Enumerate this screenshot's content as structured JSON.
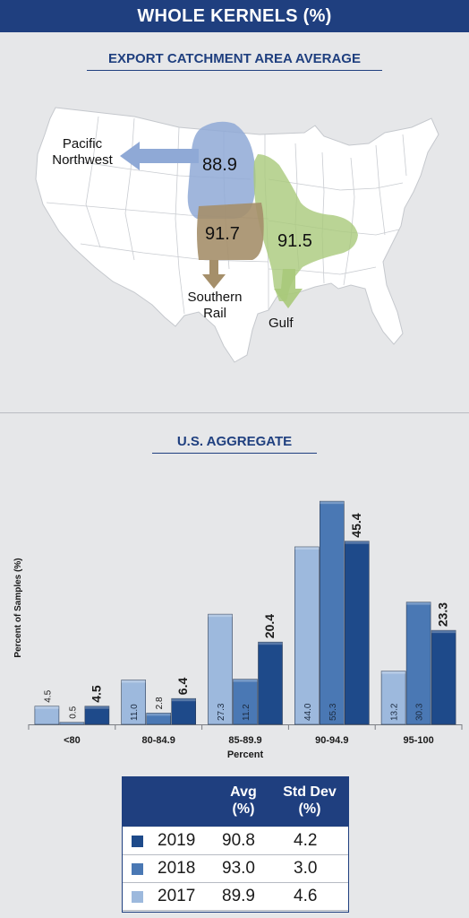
{
  "header": {
    "title": "WHOLE KERNELS (%)"
  },
  "map": {
    "title": "EXPORT CATCHMENT AREA AVERAGE",
    "regions": [
      {
        "name": "Pacific Northwest",
        "name_lines": [
          "Pacific",
          "Northwest"
        ],
        "value": "88.9",
        "color": "#8fa9d6"
      },
      {
        "name": "Southern Rail",
        "name_lines": [
          "Southern",
          "Rail"
        ],
        "value": "91.7",
        "color": "#a58f6a"
      },
      {
        "name": "Gulf",
        "name_lines": [
          "Gulf"
        ],
        "value": "91.5",
        "color": "#a9c97a"
      }
    ]
  },
  "chart_data": {
    "type": "bar",
    "title": "U.S. AGGREGATE",
    "xlabel": "Percent",
    "ylabel": "Percent of Samples (%)",
    "ylim": [
      0,
      60
    ],
    "categories": [
      "<80",
      "80-84.9",
      "85-89.9",
      "90-94.9",
      "95-100"
    ],
    "series": [
      {
        "name": "2017",
        "values": [
          4.5,
          11.0,
          27.3,
          44.0,
          13.2
        ],
        "color": "#9db9dd"
      },
      {
        "name": "2018",
        "values": [
          0.5,
          2.8,
          11.2,
          55.3,
          30.3
        ],
        "color": "#4a78b4"
      },
      {
        "name": "2019",
        "values": [
          4.5,
          6.4,
          20.4,
          45.4,
          23.3
        ],
        "color": "#1e4a8a"
      }
    ],
    "labels": [
      [
        "4.5",
        "0.5",
        "4.5"
      ],
      [
        "11.0",
        "2.8",
        "6.4"
      ],
      [
        "27.3",
        "11.2",
        "20.4"
      ],
      [
        "44.0",
        "55.3",
        "45.4"
      ],
      [
        "13.2",
        "30.3",
        "23.3"
      ]
    ]
  },
  "stats_table": {
    "headers": {
      "avg_line1": "Avg",
      "avg_line2": "(%)",
      "std_line1": "Std Dev",
      "std_line2": "(%)"
    },
    "rows": [
      {
        "year": "2019",
        "avg": "90.8",
        "std": "4.2",
        "color": "#1e4a8a"
      },
      {
        "year": "2018",
        "avg": "93.0",
        "std": "3.0",
        "color": "#4a78b4"
      },
      {
        "year": "2017",
        "avg": "89.9",
        "std": "4.6",
        "color": "#9db9dd"
      }
    ]
  }
}
